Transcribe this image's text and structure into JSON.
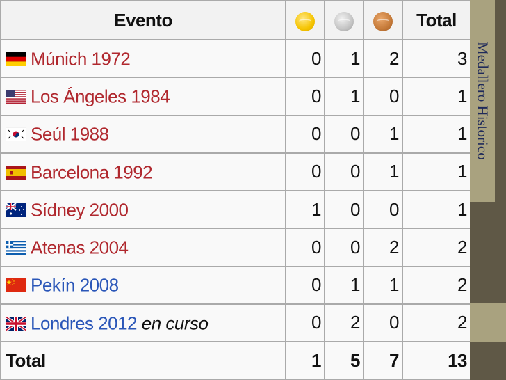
{
  "table": {
    "headers": {
      "event": "Evento",
      "gold": "gold-medal-icon",
      "silver": "silver-medal-icon",
      "bronze": "bronze-medal-icon",
      "total": "Total"
    },
    "rows": [
      {
        "event": "Múnich 1972",
        "note": "",
        "flag": "flag-west-germany",
        "link_color": "#b0282e",
        "gold": 0,
        "silver": 1,
        "bronze": 2,
        "total": 3
      },
      {
        "event": "Los Ángeles 1984",
        "note": "",
        "flag": "flag-usa",
        "link_color": "#b0282e",
        "gold": 0,
        "silver": 1,
        "bronze": 0,
        "total": 1
      },
      {
        "event": "Seúl 1988",
        "note": "",
        "flag": "flag-south-korea",
        "link_color": "#b0282e",
        "gold": 0,
        "silver": 0,
        "bronze": 1,
        "total": 1
      },
      {
        "event": "Barcelona 1992",
        "note": "",
        "flag": "flag-spain",
        "link_color": "#b0282e",
        "gold": 0,
        "silver": 0,
        "bronze": 1,
        "total": 1
      },
      {
        "event": "Sídney 2000",
        "note": "",
        "flag": "flag-australia",
        "link_color": "#b0282e",
        "gold": 1,
        "silver": 0,
        "bronze": 0,
        "total": 1
      },
      {
        "event": "Atenas 2004",
        "note": "",
        "flag": "flag-greece",
        "link_color": "#b0282e",
        "gold": 0,
        "silver": 0,
        "bronze": 2,
        "total": 2
      },
      {
        "event": "Pekín 2008",
        "note": "",
        "flag": "flag-china",
        "link_color": "#2a56b8",
        "gold": 0,
        "silver": 1,
        "bronze": 1,
        "total": 2
      },
      {
        "event": "Londres 2012",
        "note": "en curso",
        "flag": "flag-uk",
        "link_color": "#2a56b8",
        "gold": 0,
        "silver": 2,
        "bronze": 0,
        "total": 2
      }
    ],
    "totals": {
      "label": "Total",
      "gold": 1,
      "silver": 5,
      "bronze": 7,
      "total": 13
    }
  },
  "side_title": "Medallero Historico",
  "colors": {
    "header_bg": "#f2f2f2",
    "cell_bg": "#f9f9f9",
    "border": "#aaaaaa",
    "side_dark": "#5f5846",
    "side_light": "#a9a27f",
    "side_text": "#1f2a5a"
  }
}
